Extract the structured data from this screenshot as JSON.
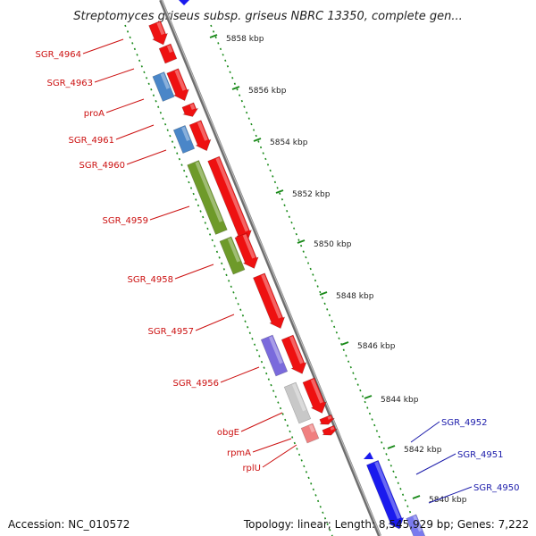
{
  "title": "Streptomyces griseus subsp. griseus NBRC 13350, complete gen...",
  "accession": "Accession: NC_010572",
  "topology": "Topology: linear; Length: 8,545,929 bp; Genes: 7,222",
  "colors": {
    "forward_gene": "#ee1111",
    "reverse_gene": "#1a1aee",
    "label_red": "#cc1111",
    "label_blue": "#1a1aaa",
    "tick_green": "#1a8a1a",
    "backbone": "#888888"
  },
  "ticks": [
    {
      "label": "5858 kbp"
    },
    {
      "label": "5856 kbp"
    },
    {
      "label": "5854 kbp"
    },
    {
      "label": "5852 kbp"
    },
    {
      "label": "5850 kbp"
    },
    {
      "label": "5848 kbp"
    },
    {
      "label": "5846 kbp"
    },
    {
      "label": "5844 kbp"
    },
    {
      "label": "5842 kbp"
    },
    {
      "label": "5840 kbp"
    }
  ],
  "gene_labels_left": [
    {
      "name": "SGR_4964"
    },
    {
      "name": "SGR_4963"
    },
    {
      "name": "proA"
    },
    {
      "name": "SGR_4961"
    },
    {
      "name": "SGR_4960"
    },
    {
      "name": "SGR_4959"
    },
    {
      "name": "SGR_4958"
    },
    {
      "name": "SGR_4957"
    },
    {
      "name": "SGR_4956"
    },
    {
      "name": "obgE"
    },
    {
      "name": "rpmA"
    },
    {
      "name": "rplU"
    }
  ],
  "gene_labels_right": [
    {
      "name": "SGR_4952"
    },
    {
      "name": "SGR_4951"
    },
    {
      "name": "SGR_4950"
    }
  ]
}
